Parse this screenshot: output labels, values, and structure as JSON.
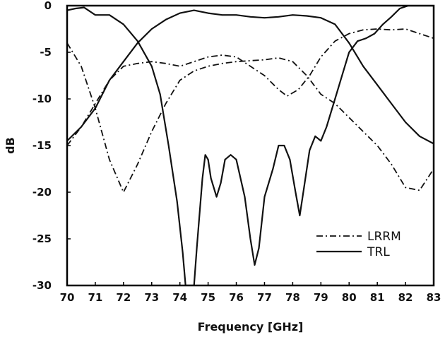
{
  "chart_data": {
    "type": "line",
    "xlabel": "Frequency [GHz]",
    "ylabel": "dB",
    "xlim": [
      70,
      83
    ],
    "ylim": [
      -30,
      0
    ],
    "xticks": [
      70,
      71,
      72,
      73,
      74,
      75,
      76,
      77,
      78,
      79,
      80,
      81,
      82,
      83
    ],
    "xtick_labels": [
      "70",
      "71",
      "72",
      "73",
      "74",
      "75",
      "76",
      "77",
      "78",
      "79",
      "80",
      "81",
      "82",
      "83"
    ],
    "yticks": [
      0,
      -5,
      -10,
      -15,
      -20,
      -25,
      -30
    ],
    "ytick_labels": [
      "0",
      "-5",
      "-10",
      "-15",
      "-20",
      "-25",
      "-30"
    ],
    "grid": false,
    "legend": "bottom-right",
    "colors": {
      "lines": "#111111",
      "axes": "#000000",
      "background": "#ffffff"
    },
    "series": [
      {
        "name": "TRL",
        "style": "solid",
        "x": [
          70.0,
          70.3,
          70.6,
          71.0,
          71.5,
          72.0,
          72.5,
          73.0,
          73.3,
          73.6,
          73.9,
          74.1,
          74.2,
          74.4,
          74.5,
          74.6,
          74.8,
          74.9,
          75.0,
          75.1,
          75.3,
          75.45,
          75.6,
          75.8,
          76.0,
          76.3,
          76.5,
          76.65,
          76.8,
          77.0,
          77.3,
          77.5,
          77.7,
          77.9,
          78.1,
          78.25,
          78.4,
          78.6,
          78.8,
          79.0,
          79.2,
          79.5,
          79.8,
          80.0,
          80.3,
          80.6,
          80.9,
          81.2,
          81.5,
          81.8,
          82.1,
          82.4,
          82.7,
          83.0
        ],
        "y": [
          -0.5,
          -0.3,
          -0.2,
          -1.0,
          -1.0,
          -2.0,
          -3.8,
          -6.5,
          -9.5,
          -15.0,
          -21.0,
          -26.5,
          -30.0,
          -30.0,
          -30.0,
          -26.0,
          -18.5,
          -16.0,
          -16.5,
          -18.5,
          -20.5,
          -19.0,
          -16.5,
          -16.0,
          -16.5,
          -20.5,
          -25.0,
          -27.8,
          -26.0,
          -20.5,
          -17.5,
          -15.0,
          -15.0,
          -16.5,
          -20.0,
          -22.5,
          -19.5,
          -15.5,
          -14.0,
          -14.5,
          -13.0,
          -10.0,
          -7.0,
          -5.0,
          -3.8,
          -3.5,
          -3.0,
          -2.0,
          -1.2,
          -0.3,
          0.0,
          0.0,
          0.0,
          0.0
        ]
      },
      {
        "name": "TRL",
        "style": "solid",
        "x": [
          70.0,
          70.5,
          71.0,
          71.5,
          72.0,
          72.5,
          73.0,
          73.5,
          74.0,
          74.5,
          75.0,
          75.5,
          76.0,
          76.5,
          77.0,
          77.5,
          78.0,
          78.5,
          79.0,
          79.5,
          80.0,
          80.5,
          81.0,
          81.5,
          82.0,
          82.5,
          83.0
        ],
        "y": [
          -14.5,
          -13.0,
          -11.0,
          -8.0,
          -6.0,
          -4.0,
          -2.5,
          -1.5,
          -0.8,
          -0.5,
          -0.8,
          -1.0,
          -1.0,
          -1.2,
          -1.3,
          -1.2,
          -1.0,
          -1.1,
          -1.3,
          -2.0,
          -4.0,
          -6.5,
          -8.5,
          -10.5,
          -12.5,
          -14.0,
          -14.8
        ]
      },
      {
        "name": "LRRM",
        "style": "dashdot",
        "x": [
          70.0,
          70.5,
          71.0,
          71.5,
          72.0,
          72.5,
          73.0,
          73.5,
          74.0,
          74.5,
          75.0,
          75.5,
          76.0,
          76.5,
          77.0,
          77.5,
          78.0,
          78.5,
          79.0,
          79.5,
          80.0,
          80.5,
          81.0,
          81.5,
          82.0,
          82.5,
          83.0
        ],
        "y": [
          -4.0,
          -6.5,
          -11.0,
          -16.5,
          -20.0,
          -17.0,
          -13.5,
          -10.5,
          -8.0,
          -7.0,
          -6.5,
          -6.2,
          -6.0,
          -5.9,
          -5.8,
          -5.6,
          -6.0,
          -7.5,
          -9.5,
          -10.5,
          -12.0,
          -13.5,
          -15.0,
          -17.0,
          -19.5,
          -19.8,
          -17.5
        ]
      },
      {
        "name": "LRRM",
        "style": "dashdot",
        "x": [
          70.0,
          70.5,
          71.0,
          71.5,
          72.0,
          72.5,
          73.0,
          73.5,
          74.0,
          74.5,
          75.0,
          75.5,
          76.0,
          76.5,
          77.0,
          77.5,
          77.8,
          78.2,
          78.6,
          79.0,
          79.5,
          80.0,
          80.5,
          81.0,
          81.5,
          82.0,
          82.5,
          83.0
        ],
        "y": [
          -15.0,
          -13.0,
          -10.5,
          -8.0,
          -6.5,
          -6.2,
          -6.0,
          -6.2,
          -6.5,
          -6.0,
          -5.5,
          -5.3,
          -5.5,
          -6.5,
          -7.5,
          -9.0,
          -9.7,
          -9.0,
          -7.5,
          -5.5,
          -3.8,
          -3.0,
          -2.6,
          -2.5,
          -2.6,
          -2.5,
          -3.0,
          -3.5
        ]
      }
    ],
    "legend_entries": [
      {
        "label": "LRRM",
        "style": "dashdot"
      },
      {
        "label": "TRL",
        "style": "solid"
      }
    ]
  }
}
